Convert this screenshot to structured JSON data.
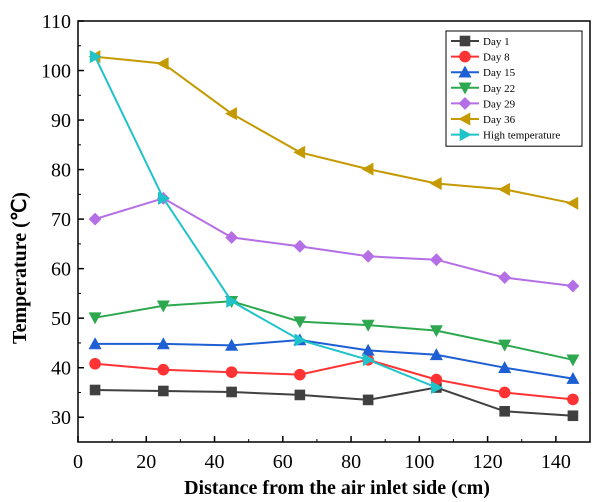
{
  "chart_data": {
    "type": "line",
    "xlabel": "Distance from the air inlet side (cm)",
    "ylabel": "Temperature (℃)",
    "xlim": [
      0,
      150
    ],
    "ylim": [
      25,
      110
    ],
    "xticks": [
      0,
      20,
      40,
      60,
      80,
      100,
      120,
      140
    ],
    "yticks": [
      30,
      40,
      50,
      60,
      70,
      80,
      90,
      100,
      110
    ],
    "grid": false,
    "legend_position": "top-right",
    "series": [
      {
        "name": "Day 1",
        "color": "#404040",
        "marker": "square",
        "points": [
          [
            5,
            35.5
          ],
          [
            25,
            35.3
          ],
          [
            45,
            35.1
          ],
          [
            65,
            34.5
          ],
          [
            85,
            33.5
          ],
          [
            105,
            36.0
          ],
          [
            125,
            31.2
          ],
          [
            145,
            30.3
          ]
        ]
      },
      {
        "name": "Day 8",
        "color": "#ff3333",
        "marker": "circle",
        "points": [
          [
            5,
            40.8
          ],
          [
            25,
            39.6
          ],
          [
            45,
            39.1
          ],
          [
            65,
            38.6
          ],
          [
            85,
            41.6
          ],
          [
            105,
            37.6
          ],
          [
            125,
            35.0
          ],
          [
            145,
            33.6
          ]
        ]
      },
      {
        "name": "Day 15",
        "color": "#1f5fd4",
        "marker": "triangle-up",
        "points": [
          [
            5,
            44.8
          ],
          [
            25,
            44.8
          ],
          [
            45,
            44.5
          ],
          [
            65,
            45.6
          ],
          [
            85,
            43.5
          ],
          [
            105,
            42.6
          ],
          [
            125,
            40.0
          ],
          [
            145,
            37.8
          ]
        ]
      },
      {
        "name": "Day 22",
        "color": "#2ea84f",
        "marker": "triangle-down",
        "points": [
          [
            5,
            50.1
          ],
          [
            25,
            52.5
          ],
          [
            45,
            53.4
          ],
          [
            65,
            49.3
          ],
          [
            85,
            48.6
          ],
          [
            105,
            47.5
          ],
          [
            125,
            44.6
          ],
          [
            145,
            41.6
          ]
        ]
      },
      {
        "name": "Day 29",
        "color": "#b46ee6",
        "marker": "diamond",
        "points": [
          [
            5,
            70.0
          ],
          [
            25,
            74.2
          ],
          [
            45,
            66.3
          ],
          [
            65,
            64.5
          ],
          [
            85,
            62.5
          ],
          [
            105,
            61.8
          ],
          [
            125,
            58.2
          ],
          [
            145,
            56.5
          ]
        ]
      },
      {
        "name": "Day 36",
        "color": "#c49a00",
        "marker": "triangle-left",
        "points": [
          [
            5,
            102.8
          ],
          [
            25,
            101.4
          ],
          [
            45,
            91.3
          ],
          [
            65,
            83.5
          ],
          [
            85,
            80.1
          ],
          [
            105,
            77.2
          ],
          [
            125,
            76.0
          ],
          [
            145,
            73.2
          ]
        ]
      },
      {
        "name": "High temperature",
        "color": "#1fc3c9",
        "marker": "triangle-right",
        "points": [
          [
            5,
            102.8
          ],
          [
            25,
            74.2
          ],
          [
            45,
            53.4
          ],
          [
            65,
            45.6
          ],
          [
            85,
            41.6
          ],
          [
            105,
            36.0
          ]
        ]
      }
    ]
  }
}
